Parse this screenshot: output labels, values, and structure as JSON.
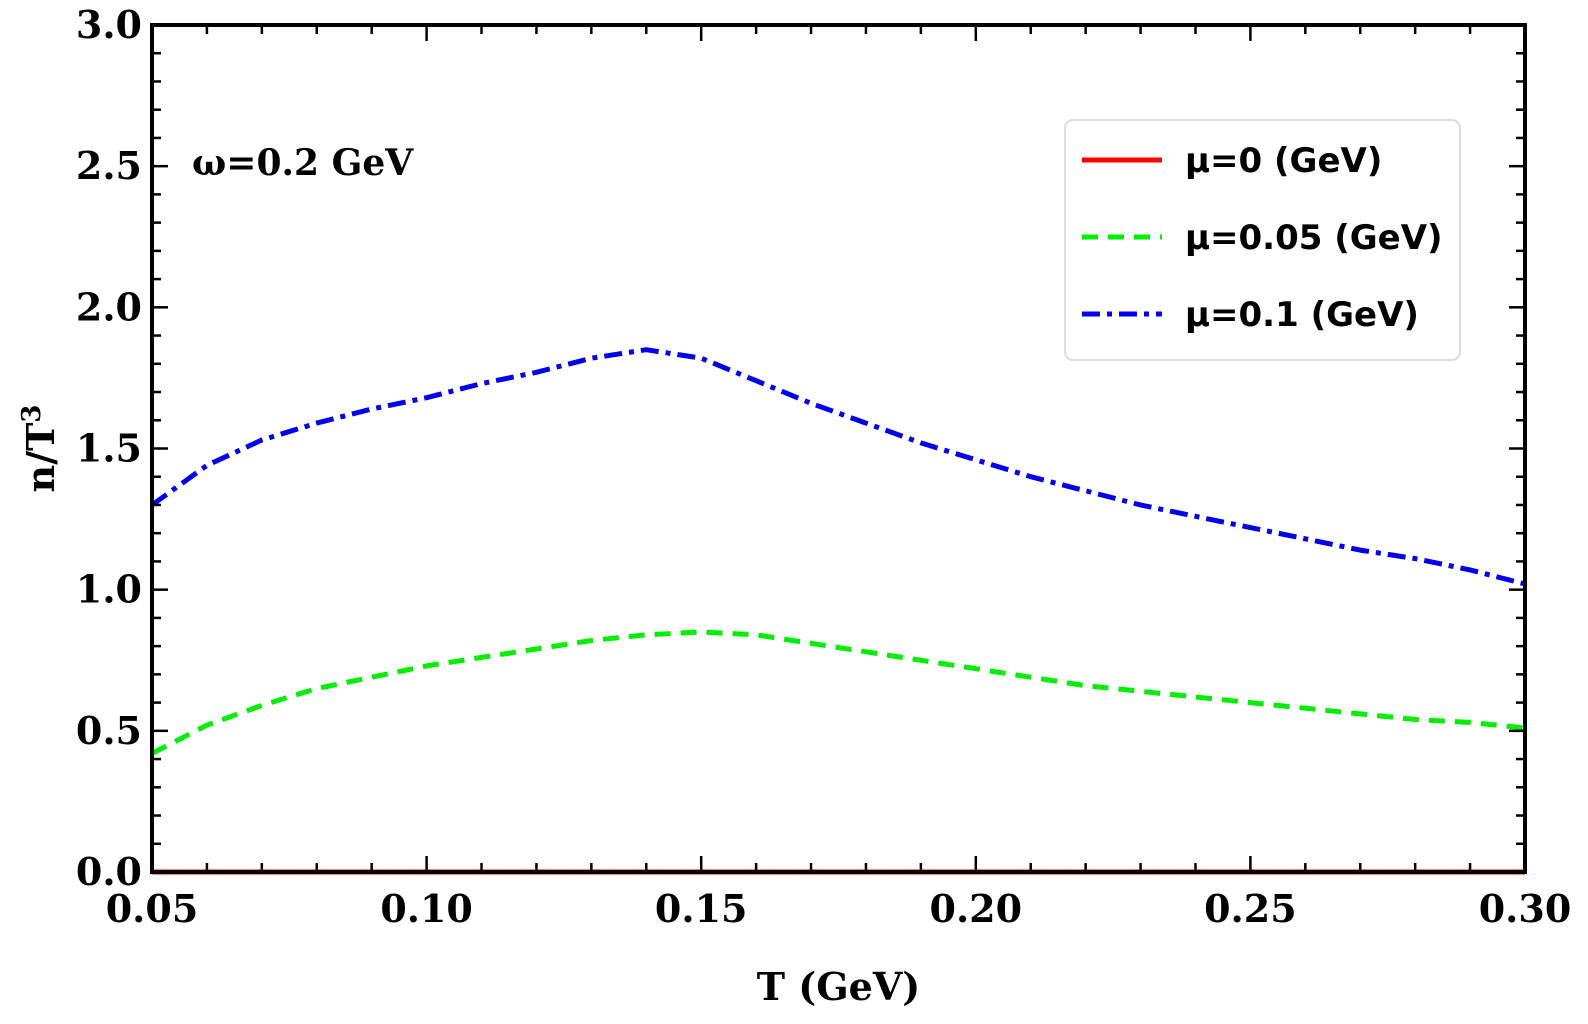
{
  "chart_data": {
    "type": "line",
    "title": "",
    "xlabel": "T (GeV)",
    "ylabel": "n/T",
    "ylabel_sup": "3",
    "xlim": [
      0.05,
      0.3
    ],
    "ylim": [
      0.0,
      3.0
    ],
    "x_ticks": [
      0.05,
      0.1,
      0.15,
      0.2,
      0.25,
      0.3
    ],
    "x_tick_labels": [
      "0.05",
      "0.10",
      "0.15",
      "0.20",
      "0.25",
      "0.30"
    ],
    "y_ticks": [
      0.0,
      0.5,
      1.0,
      1.5,
      2.0,
      2.5,
      3.0
    ],
    "y_tick_labels": [
      "0.0",
      "0.5",
      "1.0",
      "1.5",
      "2.0",
      "2.5",
      "3.0"
    ],
    "annotation": "ω=0.2 GeV",
    "legend_position": "top-right",
    "grid": false,
    "series": [
      {
        "name": "μ=0 (GeV)",
        "color": "#ff0000",
        "style": "solid",
        "x": [
          0.05,
          0.075,
          0.1,
          0.125,
          0.15,
          0.175,
          0.2,
          0.225,
          0.25,
          0.275,
          0.3
        ],
        "y": [
          0,
          0,
          0,
          0,
          0,
          0,
          0,
          0,
          0,
          0,
          0
        ]
      },
      {
        "name": "μ=0.05 (GeV)",
        "color": "#00ee00",
        "style": "dashed",
        "x": [
          0.05,
          0.06,
          0.07,
          0.08,
          0.09,
          0.1,
          0.11,
          0.12,
          0.13,
          0.14,
          0.15,
          0.16,
          0.17,
          0.18,
          0.19,
          0.2,
          0.21,
          0.22,
          0.23,
          0.24,
          0.25,
          0.26,
          0.27,
          0.28,
          0.29,
          0.3
        ],
        "y": [
          0.42,
          0.52,
          0.59,
          0.65,
          0.69,
          0.73,
          0.76,
          0.79,
          0.82,
          0.84,
          0.85,
          0.84,
          0.81,
          0.78,
          0.75,
          0.72,
          0.69,
          0.66,
          0.64,
          0.62,
          0.6,
          0.58,
          0.56,
          0.54,
          0.53,
          0.51
        ]
      },
      {
        "name": "μ=0.1 (GeV)",
        "color": "#0000ee",
        "style": "dashdot",
        "x": [
          0.05,
          0.06,
          0.07,
          0.08,
          0.09,
          0.1,
          0.11,
          0.12,
          0.13,
          0.14,
          0.15,
          0.16,
          0.17,
          0.18,
          0.19,
          0.2,
          0.21,
          0.22,
          0.23,
          0.24,
          0.25,
          0.26,
          0.27,
          0.28,
          0.29,
          0.3
        ],
        "y": [
          1.3,
          1.44,
          1.53,
          1.59,
          1.64,
          1.68,
          1.73,
          1.77,
          1.82,
          1.85,
          1.82,
          1.74,
          1.66,
          1.59,
          1.52,
          1.46,
          1.4,
          1.35,
          1.3,
          1.26,
          1.22,
          1.18,
          1.14,
          1.11,
          1.07,
          1.02
        ]
      }
    ]
  }
}
